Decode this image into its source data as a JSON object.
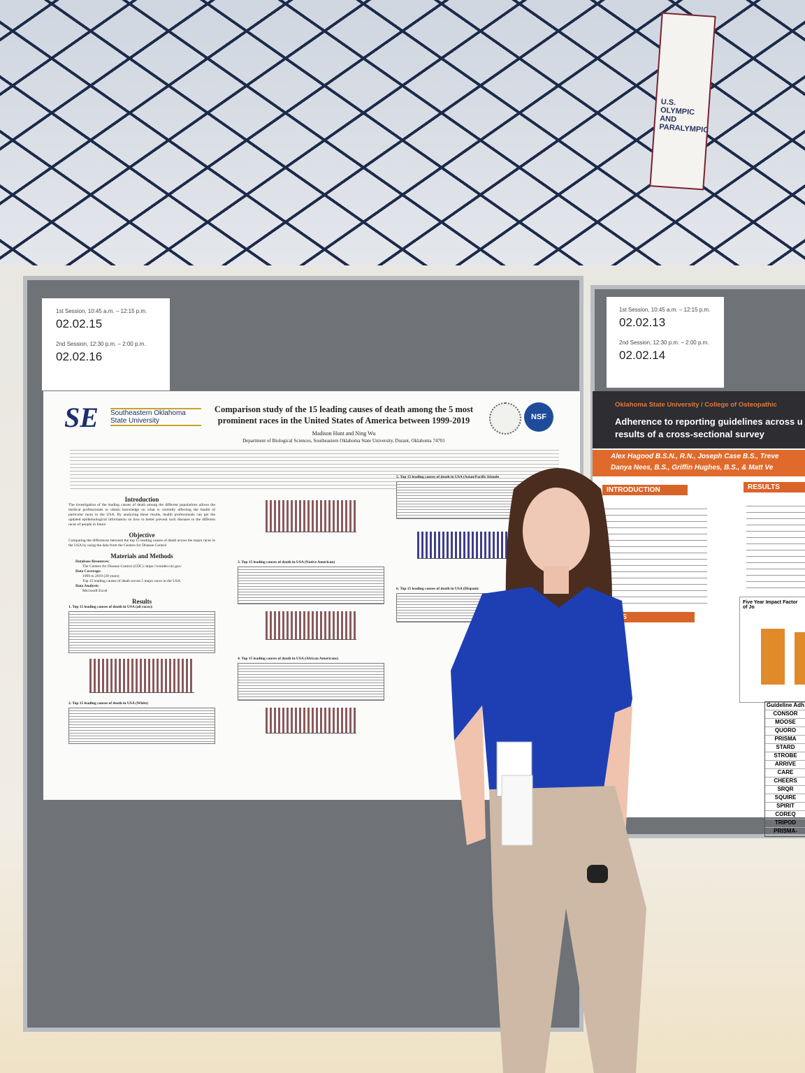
{
  "banner": "U.S. OLYMPIC AND PARALYMPIC",
  "session_cards": [
    {
      "first_session": "1st Session, 10:45 a.m. – 12:15 p.m.",
      "first_code": "02.02.15",
      "second_session": "2nd Session, 12:30 p.m. – 2:00 p.m.",
      "second_code": "02.02.16"
    },
    {
      "first_session": "1st Session, 10:45 a.m. – 12:15 p.m.",
      "first_code": "02.02.13",
      "second_session": "2nd Session, 12:30 p.m. – 2:00 p.m.",
      "second_code": "02.02.14"
    }
  ],
  "poster": {
    "logo": "SE",
    "university": "Southeastern Oklahoma State University",
    "title": "Comparison study of the 15 leading causes of death among the 5 most prominent races in the United States of America between 1999-2019",
    "badge": "NSF",
    "authors": "Madison Hunt and Ning Wu",
    "affiliation": "Department of Biological Sciences, Southeastern Oklahoma State University, Durant, Oklahoma 74701",
    "introduction": {
      "heading": "Introduction",
      "text": "The investigation of the leading causes of death among the different populations allows the medical professionals to obtain knowledge on what is currently affecting the health of particular races in the USA. By analyzing these results, health professionals can get the updated epidemiological information on how to better prevent such diseases in the different races of people in future"
    },
    "objective": {
      "heading": "Objective",
      "text": "Comparing the differences between the top 15 leading causes of death across the major races in the USA by using the data from the Centers for Disease Control"
    },
    "methods": {
      "heading": "Materials and Methods",
      "items": [
        "Database Resources:",
        "The Centers for Disease Control (CDC): https://wonder.cdc.gov/",
        "Data Coverage:",
        "1999 to 2019 (20 years)",
        "Top 15 leading causes of death across 5 major races in the USA",
        "Data Analysis:",
        "Microsoft Excel"
      ]
    },
    "results_heading": "Results",
    "figures": [
      "1. Top 15 leading causes of death in USA (all races):",
      "2. Top 15 leading causes of death in USA (White)",
      "3. Top 15 leading causes of death in USA (Native American)",
      "4. Top 15 leading causes of death in USA (African Americans)",
      "5. Top 15 leading causes of death in USA (Asian/Pacific Islande",
      "6. Top 15 leading causes of death in USA (Hispanic"
    ]
  },
  "neighbor_poster": {
    "institution": "Oklahoma State University / College of Osteopathic",
    "title_line1": "Adherence to reporting guidelines across u",
    "title_line2": "results of a cross-sectional survey",
    "authors_line1": "Alex Hagood B.S.N., R.N., Joseph Case B.S., Treve",
    "authors_line2": "Danya Nees, B.S., Griffin Hughes, B.S., & Matt Ve",
    "introduction": "INTRODUCTION",
    "methods": "HODS",
    "results": "RESULTS",
    "chart_title": "Five Year Impact Factor of Jo",
    "table_header": "Guideline Adh",
    "guidelines": [
      "CONSOR",
      "MOOSE",
      "QUORO",
      "PRISMA",
      "STARD",
      "STROBE",
      "ARRIVE",
      "CARE",
      "CHEERS",
      "SRQR",
      "SQUIRE",
      "SPIRIT",
      "COREQ",
      "TRIPOD",
      "PRISMA-"
    ]
  }
}
